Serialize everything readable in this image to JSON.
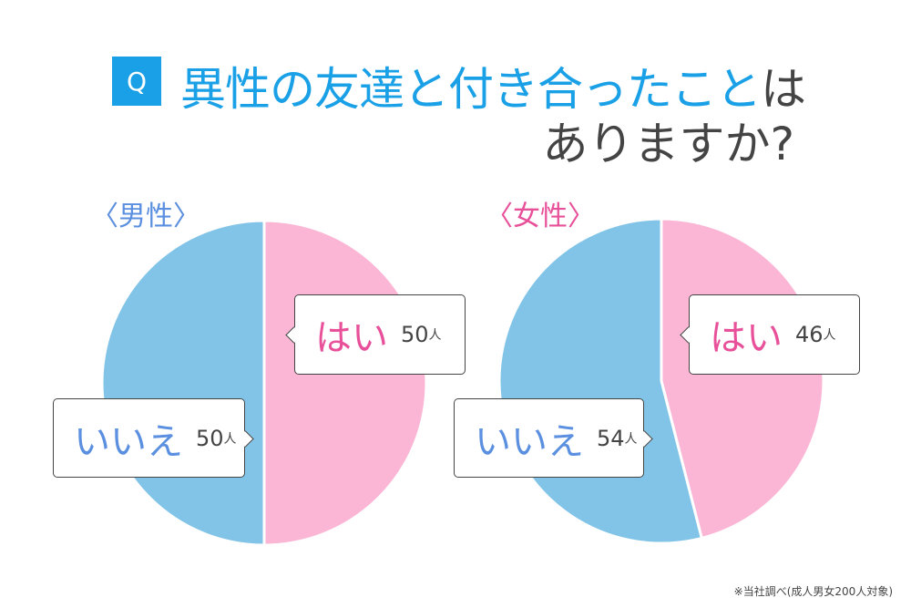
{
  "question": {
    "badge": "Q",
    "text_blue": "異性の友達と付き合ったこと",
    "text_dark": "は",
    "line2": "ありますか?"
  },
  "colors": {
    "yes": "#fbb6d6",
    "no": "#82c4e8",
    "yes_text": "#e8509a",
    "no_text": "#5b8fe0",
    "male_title": "#5b8fe0",
    "female_title": "#e8509a"
  },
  "chart_data": [
    {
      "type": "pie",
      "title": "〈男性〉",
      "labels": [
        "はい",
        "いいえ"
      ],
      "values": [
        50,
        50
      ],
      "unit": "人"
    },
    {
      "type": "pie",
      "title": "〈女性〉",
      "labels": [
        "はい",
        "いいえ"
      ],
      "values": [
        46,
        54
      ],
      "unit": "人"
    }
  ],
  "note": "※当社調べ(成人男女200人対象)"
}
